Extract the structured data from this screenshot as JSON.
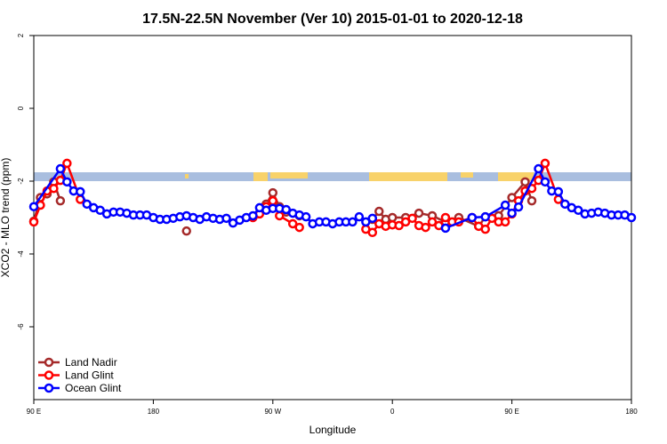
{
  "chart_data": {
    "type": "line",
    "title": "17.5N-22.5N November (Ver 10)   2015-01-01 to 2020-12-18",
    "x_label": "Longitude",
    "y_label": "XCO2 - MLO trend (ppm)",
    "xlim": [
      90,
      540
    ],
    "xticks": [
      {
        "value": 90,
        "label": "90 E"
      },
      {
        "value": 180,
        "label": "180"
      },
      {
        "value": 270,
        "label": "90 W"
      },
      {
        "value": 360,
        "label": "0"
      },
      {
        "value": 450,
        "label": "90 E"
      },
      {
        "value": 540,
        "label": "180"
      }
    ],
    "ylim": [
      -8,
      2
    ],
    "yticks": [
      2,
      0,
      -2,
      -4,
      -6
    ],
    "legend": "bottom-left",
    "series": [
      {
        "name": "Land Nadir",
        "color": "#a52a2a",
        "x": [
          90,
          95,
          100,
          105,
          110,
          null,
          205,
          null,
          265,
          270,
          275,
          280,
          290,
          null,
          345,
          350,
          355,
          360,
          370,
          380,
          390,
          400,
          410,
          425,
          430,
          440,
          450,
          460,
          465
        ],
        "values": [
          -3.1,
          -2.45,
          -2.35,
          -2.02,
          -2.54,
          null,
          -3.37,
          null,
          -2.63,
          -2.32,
          -2.7,
          -2.85,
          -2.95,
          null,
          -3.05,
          -2.83,
          -3.05,
          -3.0,
          -3.0,
          -2.88,
          -2.95,
          -3.12,
          -3.0,
          -3.24,
          -2.98,
          -2.95,
          -2.45,
          -2.02,
          -2.54
        ]
      },
      {
        "name": "Land Glint",
        "color": "#ff0000",
        "x": [
          90,
          95,
          100,
          105,
          110,
          115,
          125,
          null,
          255,
          260,
          265,
          270,
          275,
          285,
          290,
          null,
          340,
          345,
          350,
          355,
          360,
          365,
          370,
          375,
          380,
          385,
          390,
          395,
          400,
          405,
          410,
          420,
          425,
          430,
          435,
          440,
          445,
          450,
          455,
          460,
          465,
          470,
          475,
          485
        ],
        "values": [
          -3.12,
          -2.66,
          -2.27,
          -2.2,
          -1.98,
          -1.51,
          -2.5,
          null,
          -3.0,
          -2.9,
          -2.7,
          -2.54,
          -2.95,
          -3.17,
          -3.27,
          null,
          -3.32,
          -3.41,
          -3.17,
          -3.24,
          -3.2,
          -3.22,
          -3.12,
          -3.02,
          -3.22,
          -3.27,
          -3.12,
          -3.22,
          -3.0,
          -3.12,
          -3.12,
          -3.0,
          -3.24,
          -3.32,
          -3.02,
          -3.12,
          -3.12,
          -2.9,
          -2.54,
          -2.27,
          -2.2,
          -1.98,
          -1.51,
          -2.5
        ]
      },
      {
        "name": "Ocean Glint",
        "color": "#0000ff",
        "x": [
          90,
          110,
          115,
          120,
          125,
          130,
          135,
          140,
          145,
          150,
          155,
          160,
          165,
          170,
          175,
          180,
          185,
          190,
          195,
          200,
          205,
          210,
          215,
          220,
          225,
          230,
          235,
          240,
          245,
          250,
          255,
          260,
          265,
          270,
          275,
          280,
          285,
          290,
          295,
          300,
          305,
          310,
          315,
          320,
          325,
          330,
          335,
          340,
          345,
          null,
          400,
          420,
          430,
          445,
          450,
          455,
          470,
          475,
          480,
          485,
          490,
          495,
          500,
          505,
          510,
          515,
          520,
          525,
          530,
          535,
          540
        ],
        "values": [
          -2.7,
          -1.66,
          -2.02,
          -2.27,
          -2.29,
          -2.63,
          -2.73,
          -2.8,
          -2.9,
          -2.85,
          -2.85,
          -2.88,
          -2.93,
          -2.93,
          -2.93,
          -3.0,
          -3.05,
          -3.05,
          -3.02,
          -2.98,
          -2.95,
          -3.0,
          -3.05,
          -2.98,
          -3.02,
          -3.05,
          -3.02,
          -3.15,
          -3.07,
          -3.0,
          -2.95,
          -2.73,
          -2.8,
          -2.75,
          -2.75,
          -2.78,
          -2.88,
          -2.93,
          -2.98,
          -3.17,
          -3.12,
          -3.12,
          -3.17,
          -3.12,
          -3.12,
          -3.12,
          -2.98,
          -3.12,
          -3.02,
          null,
          -3.29,
          -3.0,
          -2.98,
          -2.66,
          -2.88,
          -2.71,
          -1.66,
          -2.02,
          -2.27,
          -2.29,
          -2.63,
          -2.73,
          -2.8,
          -2.9,
          -2.88,
          -2.85,
          -2.88,
          -2.93,
          -2.93,
          -2.93,
          -3.0
        ]
      }
    ]
  }
}
